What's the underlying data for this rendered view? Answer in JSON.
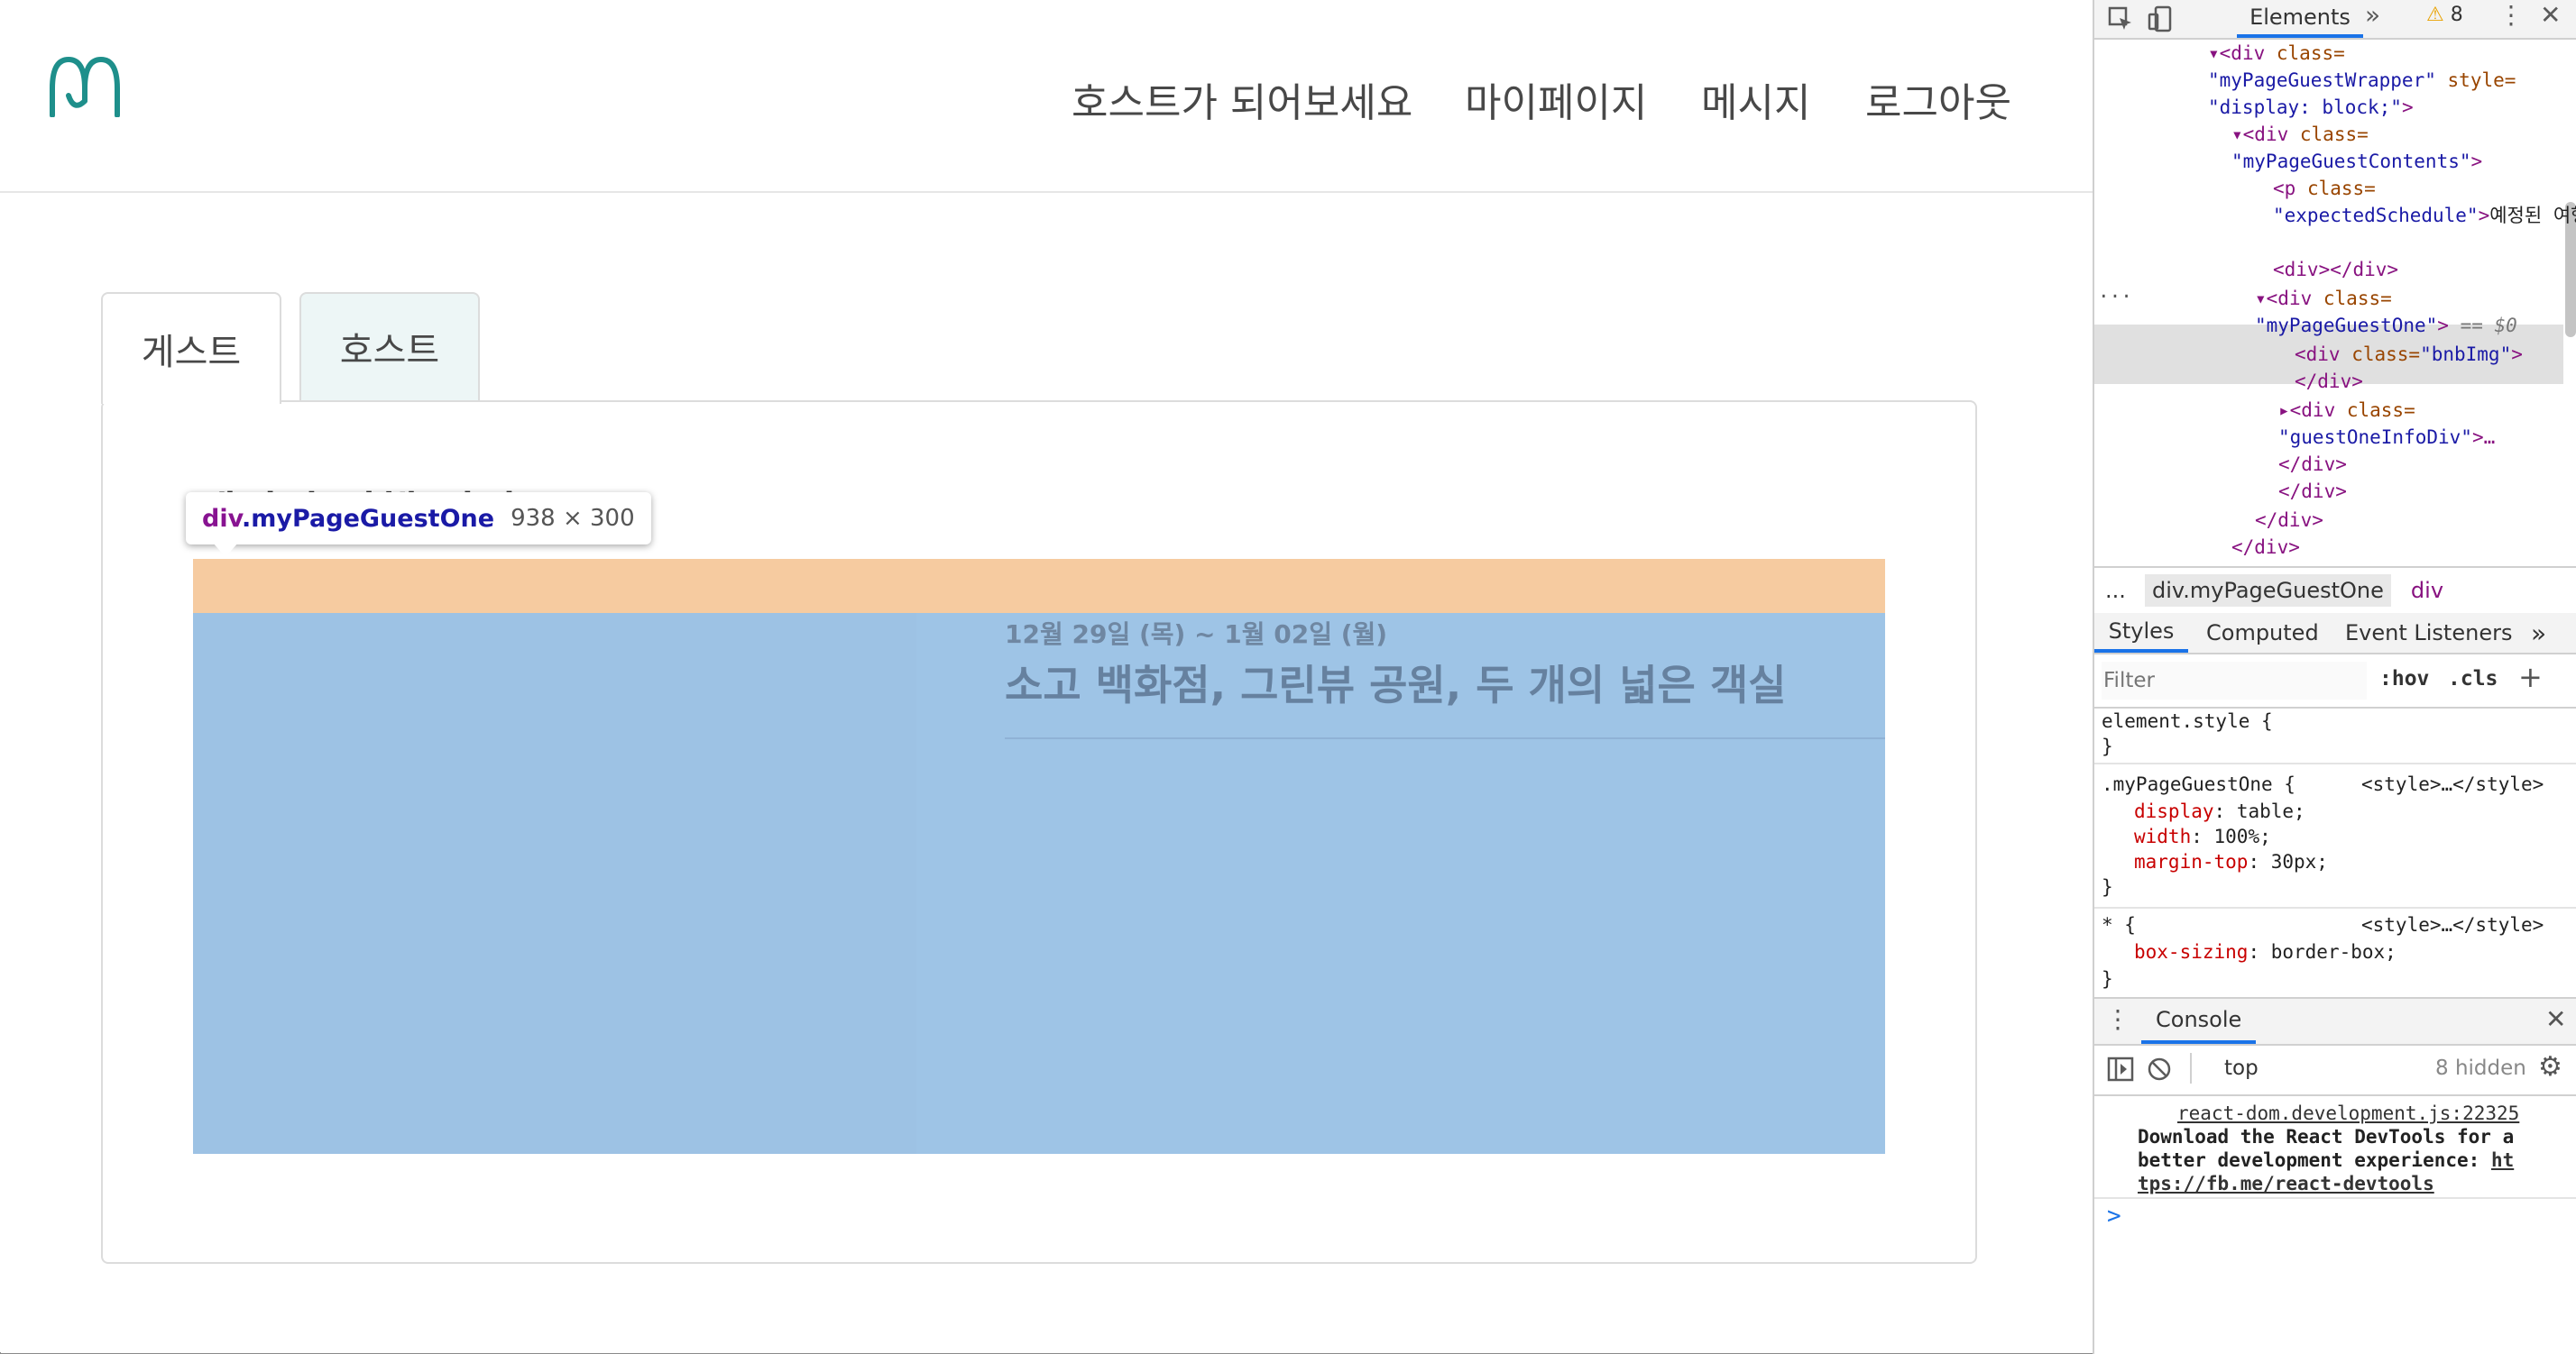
{
  "page": {
    "nav": [
      "호스트가 되어보세요",
      "마이페이지",
      "메시지",
      "로그아웃"
    ],
    "tabs": {
      "guest": "게스트",
      "host": "호스트"
    },
    "schedule_title": "예정된 여행 일정",
    "tooltip": {
      "tag": "div",
      "cls": ".myPageGuestOne",
      "size": "938 × 300"
    },
    "trip": {
      "dates": "12월 29일 (목) ~ 1월 02일 (월)",
      "name": "소고 백화점, 그린뷰 공원, 두 개의 넓은 객실"
    },
    "colors": {
      "logo": "#1e8f8b",
      "margin_overlay": "#f6cba0",
      "content_overlay": "#9ec4e6"
    }
  },
  "devtools": {
    "active_panel": "Elements",
    "warning_count": "8",
    "dom": {
      "l1_tag": "div",
      "l1_attr": "class=",
      "l1_val": "\"myPageGuestWrapper\"",
      "l1_attr2": "style=",
      "l1_val2": "\"display: block;\"",
      "l2_tag": "div",
      "l2_attr": "class=",
      "l2_val": "\"myPageGuestContents\"",
      "l3_tag": "p",
      "l3_attr": "class=",
      "l3_val": "\"expectedSchedule\"",
      "l3_text": "예정된 여행 일정",
      "l4": "<div></div>",
      "l5_tag": "div",
      "l5_attr": "class=",
      "l5_val": "\"myPageGuestOne\"",
      "l5_eq": "== $0",
      "l6_val": "\"bnbImg\"",
      "l7_val": "\"guestOneInfoDiv\"",
      "close_div": "</div>"
    },
    "breadcrumb": {
      "dots": "...",
      "item1": "div.myPageGuestOne",
      "item2": "div"
    },
    "style_tabs": [
      "Styles",
      "Computed",
      "Event Listeners"
    ],
    "filter_placeholder": "Filter",
    "filter_hov": ":hov",
    "filter_cls": ".cls",
    "rules": {
      "element_style": "element.style {",
      "close": "}",
      "rule1_selector": ".myPageGuestOne {",
      "rule1_source": "<style>…</style>",
      "rule1_props": [
        {
          "name": "display",
          "value": "table;"
        },
        {
          "name": "width",
          "value": "100%;"
        },
        {
          "name": "margin-top",
          "value": "30px;"
        }
      ],
      "rule2_selector": "* {",
      "rule2_source": "<style>…</style>",
      "rule2_prop": {
        "name": "box-sizing",
        "value": "border-box;"
      }
    },
    "console": {
      "title": "Console",
      "context": "top",
      "hidden": "8 hidden",
      "source_link": "react-dom.development.js:22325",
      "message_1": "Download the React DevTools for a",
      "message_2": "better development experience: ",
      "link_1": "ht",
      "link_2": "tps://fb.me/react-devtools",
      "prompt": ">"
    }
  }
}
